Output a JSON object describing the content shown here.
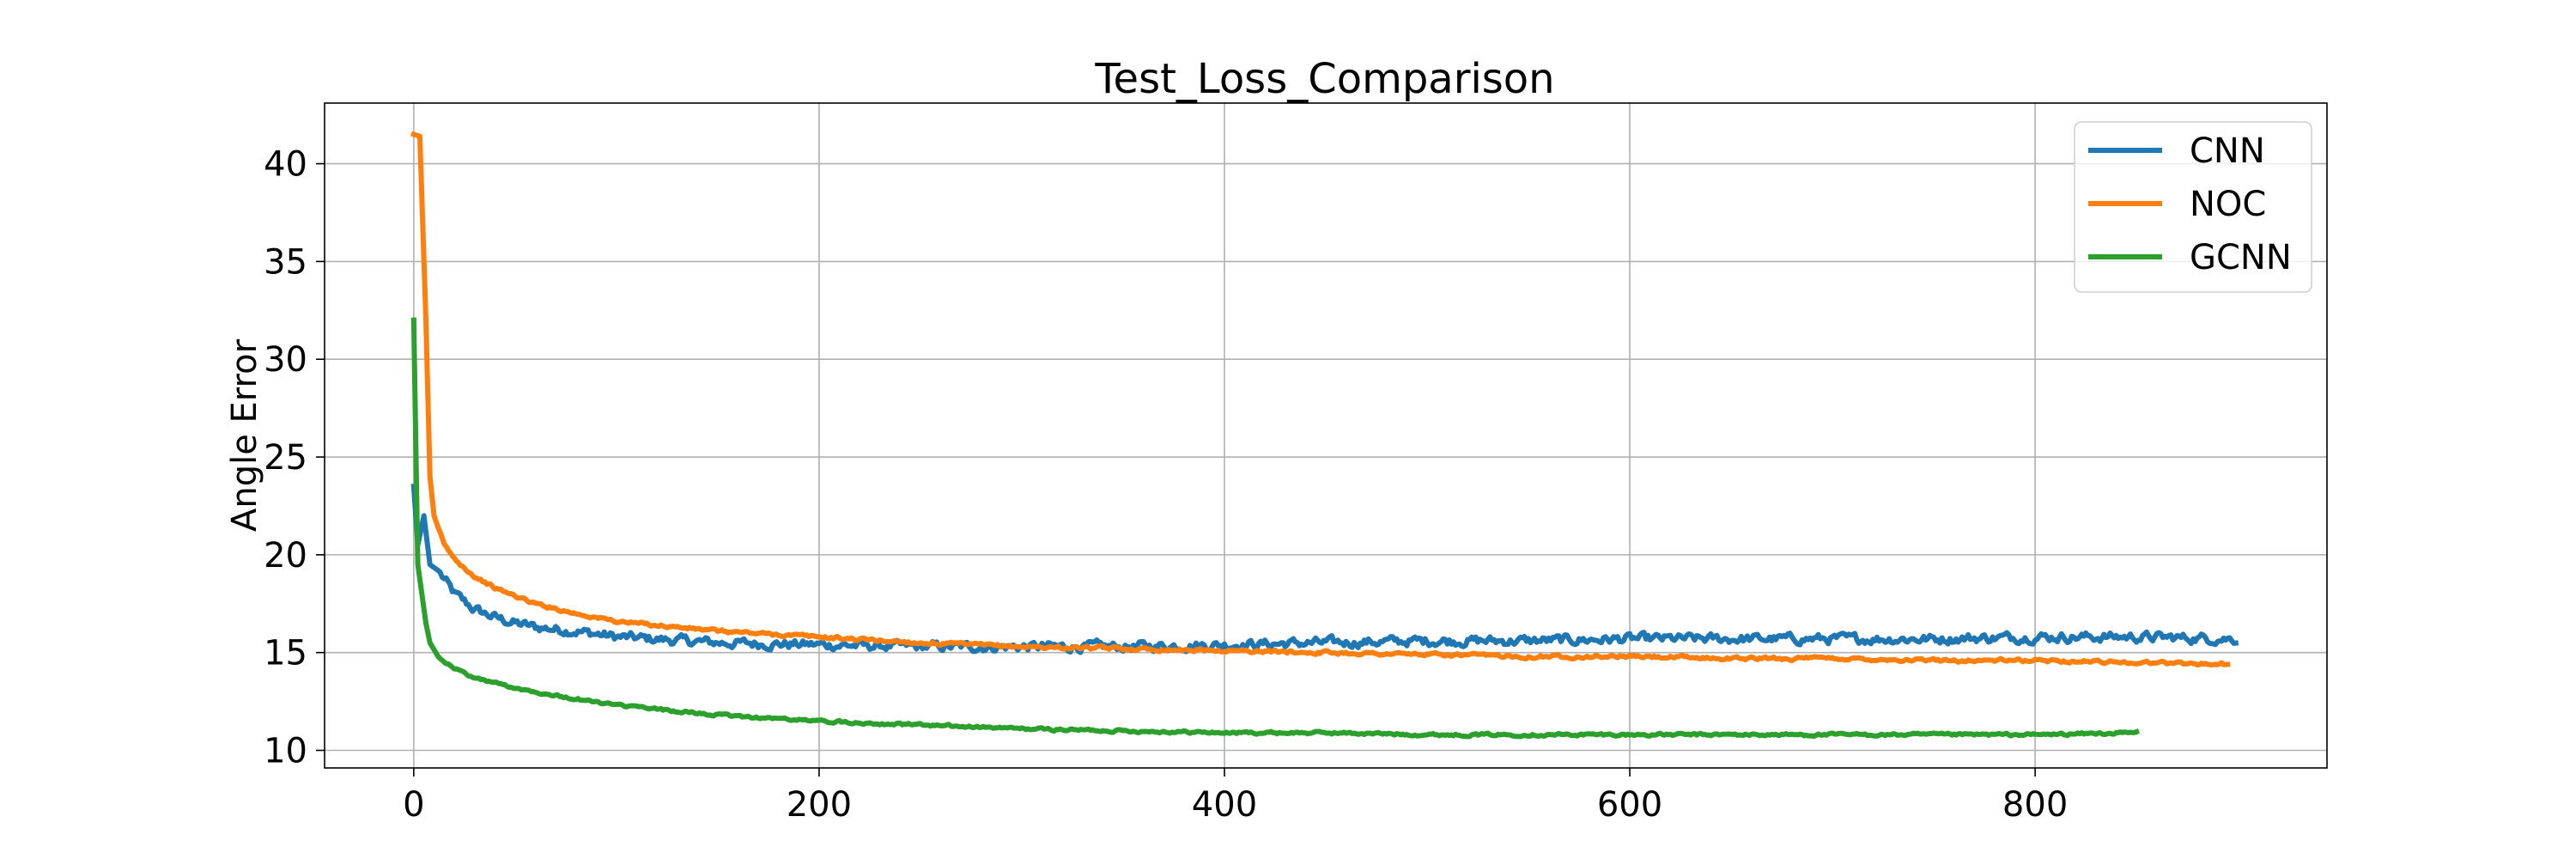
{
  "chart_data": {
    "type": "line",
    "title": "Test_Loss_Comparison",
    "xlabel": "",
    "ylabel": "Angle Error",
    "xlim": [
      -44,
      944
    ],
    "ylim": [
      9.1,
      43.1
    ],
    "x_ticks": [
      0,
      200,
      400,
      600,
      800
    ],
    "y_ticks": [
      10,
      15,
      20,
      25,
      30,
      35,
      40
    ],
    "grid": true,
    "legend_position": "top-right",
    "series": [
      {
        "name": "CNN",
        "color": "#1f77b4",
        "points": [
          [
            0,
            23.5
          ],
          [
            2,
            20.5
          ],
          [
            5,
            22.0
          ],
          [
            8,
            19.5
          ],
          [
            12,
            19.2
          ],
          [
            20,
            18.0
          ],
          [
            30,
            17.2
          ],
          [
            40,
            16.8
          ],
          [
            50,
            16.5
          ],
          [
            60,
            16.3
          ],
          [
            80,
            16.1
          ],
          [
            100,
            15.8
          ],
          [
            150,
            15.5
          ],
          [
            200,
            15.4
          ],
          [
            250,
            15.3
          ],
          [
            300,
            15.3
          ],
          [
            350,
            15.3
          ],
          [
            400,
            15.4
          ],
          [
            450,
            15.5
          ],
          [
            500,
            15.6
          ],
          [
            550,
            15.6
          ],
          [
            600,
            15.7
          ],
          [
            650,
            15.7
          ],
          [
            700,
            15.7
          ],
          [
            750,
            15.7
          ],
          [
            800,
            15.8
          ],
          [
            850,
            15.8
          ],
          [
            899,
            15.7
          ]
        ],
        "noise": 0.45
      },
      {
        "name": "NOC",
        "color": "#ff7f0e",
        "points": [
          [
            0,
            41.5
          ],
          [
            3,
            41.4
          ],
          [
            6,
            32.0
          ],
          [
            8,
            24.0
          ],
          [
            10,
            22.0
          ],
          [
            15,
            20.5
          ],
          [
            20,
            19.8
          ],
          [
            30,
            18.9
          ],
          [
            40,
            18.3
          ],
          [
            60,
            17.5
          ],
          [
            80,
            17.0
          ],
          [
            100,
            16.6
          ],
          [
            150,
            16.1
          ],
          [
            200,
            15.8
          ],
          [
            250,
            15.5
          ],
          [
            300,
            15.3
          ],
          [
            350,
            15.2
          ],
          [
            400,
            15.1
          ],
          [
            450,
            15.0
          ],
          [
            500,
            14.9
          ],
          [
            550,
            14.8
          ],
          [
            600,
            14.8
          ],
          [
            650,
            14.7
          ],
          [
            700,
            14.7
          ],
          [
            750,
            14.6
          ],
          [
            800,
            14.6
          ],
          [
            850,
            14.5
          ],
          [
            895,
            14.4
          ]
        ],
        "noise": 0.15
      },
      {
        "name": "GCNN",
        "color": "#2ca02c",
        "points": [
          [
            0,
            32.0
          ],
          [
            2,
            19.5
          ],
          [
            4,
            18.0
          ],
          [
            6,
            16.5
          ],
          [
            8,
            15.5
          ],
          [
            12,
            14.8
          ],
          [
            20,
            14.2
          ],
          [
            30,
            13.7
          ],
          [
            50,
            13.2
          ],
          [
            70,
            12.8
          ],
          [
            100,
            12.3
          ],
          [
            150,
            11.8
          ],
          [
            200,
            11.5
          ],
          [
            250,
            11.3
          ],
          [
            300,
            11.1
          ],
          [
            350,
            11.0
          ],
          [
            400,
            10.9
          ],
          [
            450,
            10.9
          ],
          [
            500,
            10.8
          ],
          [
            550,
            10.8
          ],
          [
            600,
            10.8
          ],
          [
            650,
            10.8
          ],
          [
            700,
            10.8
          ],
          [
            750,
            10.8
          ],
          [
            800,
            10.8
          ],
          [
            850,
            10.9
          ]
        ],
        "noise": 0.12
      }
    ]
  }
}
